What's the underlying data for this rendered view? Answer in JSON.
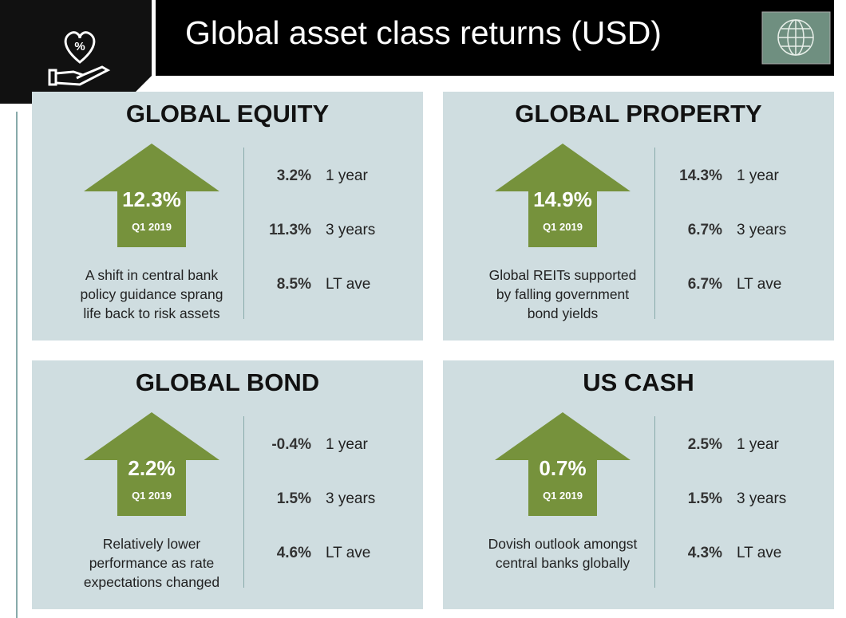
{
  "header": {
    "title": "Global asset class returns (USD)"
  },
  "panels": [
    {
      "title": "GLOBAL EQUITY",
      "headline": "12.3%",
      "period": "Q1 2019",
      "description": [
        "A shift in central bank",
        "policy guidance sprang",
        "life back to risk assets"
      ],
      "stats": [
        {
          "value": "3.2%",
          "label": "1 year"
        },
        {
          "value": "11.3%",
          "label": "3 years"
        },
        {
          "value": "8.5%",
          "label": "LT ave"
        }
      ]
    },
    {
      "title": "GLOBAL PROPERTY",
      "headline": "14.9%",
      "period": "Q1 2019",
      "description": [
        "Global REITs supported",
        "by falling government",
        "bond yields"
      ],
      "stats": [
        {
          "value": "14.3%",
          "label": "1 year"
        },
        {
          "value": "6.7%",
          "label": "3 years"
        },
        {
          "value": "6.7%",
          "label": "LT ave"
        }
      ]
    },
    {
      "title": "GLOBAL BOND",
      "headline": "2.2%",
      "period": "Q1 2019",
      "description": [
        "Relatively lower",
        "performance as rate",
        "expectations changed"
      ],
      "stats": [
        {
          "value": "-0.4%",
          "label": "1 year"
        },
        {
          "value": "1.5%",
          "label": "3 years"
        },
        {
          "value": "4.6%",
          "label": "LT ave"
        }
      ]
    },
    {
      "title": "US CASH",
      "headline": "0.7%",
      "period": "Q1 2019",
      "description": [
        "Dovish outlook amongst",
        "central banks globally"
      ],
      "stats": [
        {
          "value": "2.5%",
          "label": "1 year"
        },
        {
          "value": "1.5%",
          "label": "3 years"
        },
        {
          "value": "4.3%",
          "label": "LT ave"
        }
      ]
    }
  ]
}
